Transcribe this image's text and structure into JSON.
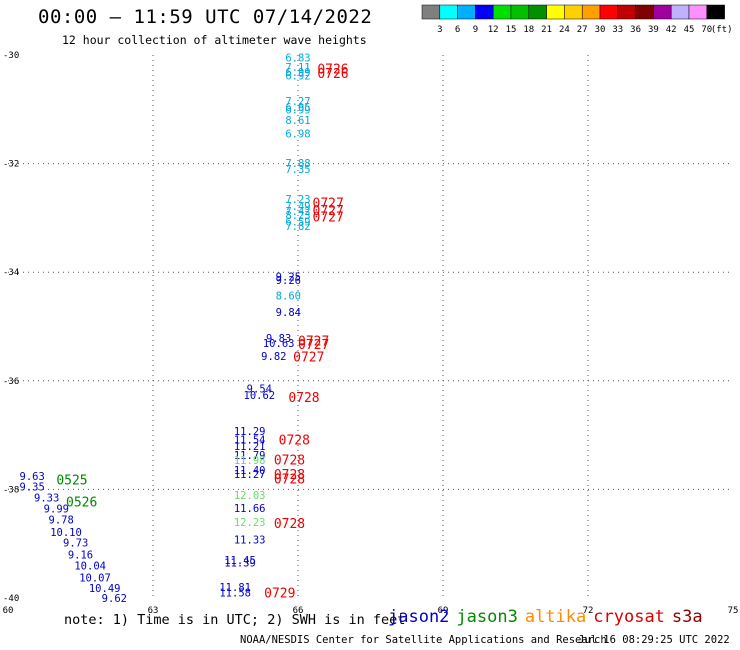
{
  "header": {
    "title": "00:00 — 11:59 UTC 07/14/2022",
    "subtitle": "12 hour collection of altimeter wave heights"
  },
  "colorbar": {
    "colors": [
      "#7f7f7f",
      "#00ffff",
      "#00b0ff",
      "#0000ff",
      "#00e000",
      "#00c000",
      "#009000",
      "#ffff00",
      "#ffd000",
      "#ffa000",
      "#ff0000",
      "#c00000",
      "#800000",
      "#a000a0",
      "#c0b0ff",
      "#ff90ff",
      "#000000"
    ],
    "labels": [
      "3",
      "6",
      "9",
      "12",
      "15",
      "18",
      "21",
      "24",
      "27",
      "30",
      "33",
      "36",
      "39",
      "42",
      "45",
      "70",
      "(ft)"
    ]
  },
  "footer": {
    "note": "note: 1) Time is in UTC; 2) SWH is in feet",
    "legend": [
      {
        "name": "jason2",
        "color": "#0000cc"
      },
      {
        "name": "jason3",
        "color": "#008800"
      },
      {
        "name": "altika",
        "color": "#ff8c00"
      },
      {
        "name": "cryosat",
        "color": "#dd0000"
      },
      {
        "name": "s3a",
        "color": "#8b0000"
      }
    ],
    "credit": "NOAA/NESDIS Center for Satellite Applications and Research",
    "timestamp": "Jul 16 08:29:25 UTC 2022"
  },
  "chart_data": {
    "type": "scatter",
    "title": "12 hour collection of altimeter wave heights",
    "xlabel": "",
    "ylabel": "",
    "xlim": [
      60,
      75
    ],
    "ylim": [
      -40,
      -30
    ],
    "xticks": [
      "60",
      "63",
      "66",
      "69",
      "72",
      "75"
    ],
    "yticks": [
      "-30",
      "-32",
      "-34",
      "-36",
      "-38",
      "-40"
    ],
    "grid": true,
    "legend_placement": "bottom",
    "colors": {
      "cyan": "#00aadd",
      "blue": "#0000cc",
      "lightgreen": "#66dd66",
      "red": "#ee0000",
      "green": "#008800"
    },
    "points": [
      {
        "x": 66.0,
        "y": -30.05,
        "v": "6.83",
        "c": "cyan"
      },
      {
        "x": 66.0,
        "y": -30.22,
        "v": "7.11",
        "c": "cyan"
      },
      {
        "x": 66.0,
        "y": -30.31,
        "v": "6.99",
        "c": "cyan"
      },
      {
        "x": 66.0,
        "y": -30.38,
        "v": "6.92",
        "c": "cyan"
      },
      {
        "x": 66.0,
        "y": -30.85,
        "v": "7.27",
        "c": "cyan"
      },
      {
        "x": 66.0,
        "y": -30.96,
        "v": "6.95",
        "c": "cyan"
      },
      {
        "x": 66.0,
        "y": -31.0,
        "v": "6.99",
        "c": "cyan"
      },
      {
        "x": 66.0,
        "y": -31.2,
        "v": "8.61",
        "c": "cyan"
      },
      {
        "x": 66.0,
        "y": -31.45,
        "v": "6.98",
        "c": "cyan"
      },
      {
        "x": 66.0,
        "y": -31.99,
        "v": "7.88",
        "c": "cyan"
      },
      {
        "x": 66.0,
        "y": -32.1,
        "v": "7.35",
        "c": "cyan"
      },
      {
        "x": 66.0,
        "y": -32.65,
        "v": "7.23",
        "c": "cyan"
      },
      {
        "x": 66.0,
        "y": -32.78,
        "v": "7.49",
        "c": "cyan"
      },
      {
        "x": 66.0,
        "y": -32.87,
        "v": "7.42",
        "c": "cyan"
      },
      {
        "x": 66.0,
        "y": -32.95,
        "v": "8.23",
        "c": "cyan"
      },
      {
        "x": 66.0,
        "y": -33.07,
        "v": "6.59",
        "c": "cyan"
      },
      {
        "x": 66.0,
        "y": -33.15,
        "v": "7.82",
        "c": "cyan"
      },
      {
        "x": 65.8,
        "y": -34.08,
        "v": "9.25",
        "c": "blue"
      },
      {
        "x": 65.8,
        "y": -34.14,
        "v": "9.26",
        "c": "blue"
      },
      {
        "x": 65.8,
        "y": -34.43,
        "v": "8.60",
        "c": "cyan"
      },
      {
        "x": 65.8,
        "y": -34.73,
        "v": "9.84",
        "c": "blue"
      },
      {
        "x": 65.6,
        "y": -35.21,
        "v": "9.83",
        "c": "blue"
      },
      {
        "x": 65.6,
        "y": -35.3,
        "v": "10.63",
        "c": "blue"
      },
      {
        "x": 65.5,
        "y": -35.54,
        "v": "9.82",
        "c": "blue"
      },
      {
        "x": 65.2,
        "y": -36.14,
        "v": "9.54",
        "c": "blue"
      },
      {
        "x": 65.2,
        "y": -36.26,
        "v": "10.62",
        "c": "blue"
      },
      {
        "x": 65.0,
        "y": -36.92,
        "v": "11.29",
        "c": "blue"
      },
      {
        "x": 65.0,
        "y": -37.08,
        "v": "11.54",
        "c": "blue"
      },
      {
        "x": 65.0,
        "y": -37.2,
        "v": "11.21",
        "c": "blue"
      },
      {
        "x": 65.0,
        "y": -37.37,
        "v": "11.79",
        "c": "blue"
      },
      {
        "x": 65.0,
        "y": -37.46,
        "v": "11.98",
        "c": "lightgreen"
      },
      {
        "x": 65.0,
        "y": -37.64,
        "v": "11.40",
        "c": "blue"
      },
      {
        "x": 65.0,
        "y": -37.72,
        "v": "11.27",
        "c": "blue"
      },
      {
        "x": 65.0,
        "y": -38.1,
        "v": "12.03",
        "c": "lightgreen"
      },
      {
        "x": 65.0,
        "y": -38.34,
        "v": "11.66",
        "c": "blue"
      },
      {
        "x": 65.0,
        "y": -38.6,
        "v": "12.23",
        "c": "lightgreen"
      },
      {
        "x": 65.0,
        "y": -38.92,
        "v": "11.33",
        "c": "blue"
      },
      {
        "x": 64.8,
        "y": -39.3,
        "v": "11.45",
        "c": "blue"
      },
      {
        "x": 64.8,
        "y": -39.35,
        "v": "11.39",
        "c": "blue"
      },
      {
        "x": 64.7,
        "y": -39.8,
        "v": "11.81",
        "c": "blue"
      },
      {
        "x": 64.7,
        "y": -39.9,
        "v": "11.58",
        "c": "blue"
      },
      {
        "x": 60.5,
        "y": -37.75,
        "v": "9.63",
        "c": "blue"
      },
      {
        "x": 60.5,
        "y": -37.95,
        "v": "9.35",
        "c": "blue"
      },
      {
        "x": 60.8,
        "y": -38.15,
        "v": "9.33",
        "c": "blue"
      },
      {
        "x": 61.0,
        "y": -38.35,
        "v": "9.99",
        "c": "blue"
      },
      {
        "x": 61.1,
        "y": -38.55,
        "v": "9.78",
        "c": "blue"
      },
      {
        "x": 61.2,
        "y": -38.78,
        "v": "10.10",
        "c": "blue"
      },
      {
        "x": 61.4,
        "y": -38.98,
        "v": "9.73",
        "c": "blue"
      },
      {
        "x": 61.5,
        "y": -39.2,
        "v": "9.16",
        "c": "blue"
      },
      {
        "x": 61.7,
        "y": -39.4,
        "v": "10.04",
        "c": "blue"
      },
      {
        "x": 61.8,
        "y": -39.62,
        "v": "10.07",
        "c": "blue"
      },
      {
        "x": 62.0,
        "y": -39.82,
        "v": "10.49",
        "c": "blue"
      },
      {
        "x": 62.2,
        "y": -40.0,
        "v": "9.62",
        "c": "blue"
      }
    ],
    "time_labels": [
      {
        "x": 66.4,
        "y": -30.25,
        "v": "0726",
        "c": "red"
      },
      {
        "x": 66.4,
        "y": -30.33,
        "v": "0726",
        "c": "red"
      },
      {
        "x": 66.3,
        "y": -32.72,
        "v": "0727",
        "c": "red"
      },
      {
        "x": 66.3,
        "y": -32.85,
        "v": "0727",
        "c": "red"
      },
      {
        "x": 66.3,
        "y": -32.97,
        "v": "0727",
        "c": "red"
      },
      {
        "x": 66.0,
        "y": -35.26,
        "v": "0727",
        "c": "red"
      },
      {
        "x": 66.0,
        "y": -35.32,
        "v": "0727",
        "c": "red"
      },
      {
        "x": 65.9,
        "y": -35.55,
        "v": "0727",
        "c": "red"
      },
      {
        "x": 65.8,
        "y": -36.3,
        "v": "0728",
        "c": "red"
      },
      {
        "x": 65.6,
        "y": -37.08,
        "v": "0728",
        "c": "red"
      },
      {
        "x": 65.5,
        "y": -37.45,
        "v": "0728",
        "c": "red"
      },
      {
        "x": 65.5,
        "y": -37.72,
        "v": "0728",
        "c": "red"
      },
      {
        "x": 65.5,
        "y": -37.8,
        "v": "0728",
        "c": "red"
      },
      {
        "x": 65.5,
        "y": -38.62,
        "v": "0728",
        "c": "red"
      },
      {
        "x": 65.3,
        "y": -39.9,
        "v": "0729",
        "c": "red"
      },
      {
        "x": 61.0,
        "y": -37.82,
        "v": "0525",
        "c": "green"
      },
      {
        "x": 61.2,
        "y": -38.22,
        "v": "0526",
        "c": "green"
      }
    ]
  }
}
